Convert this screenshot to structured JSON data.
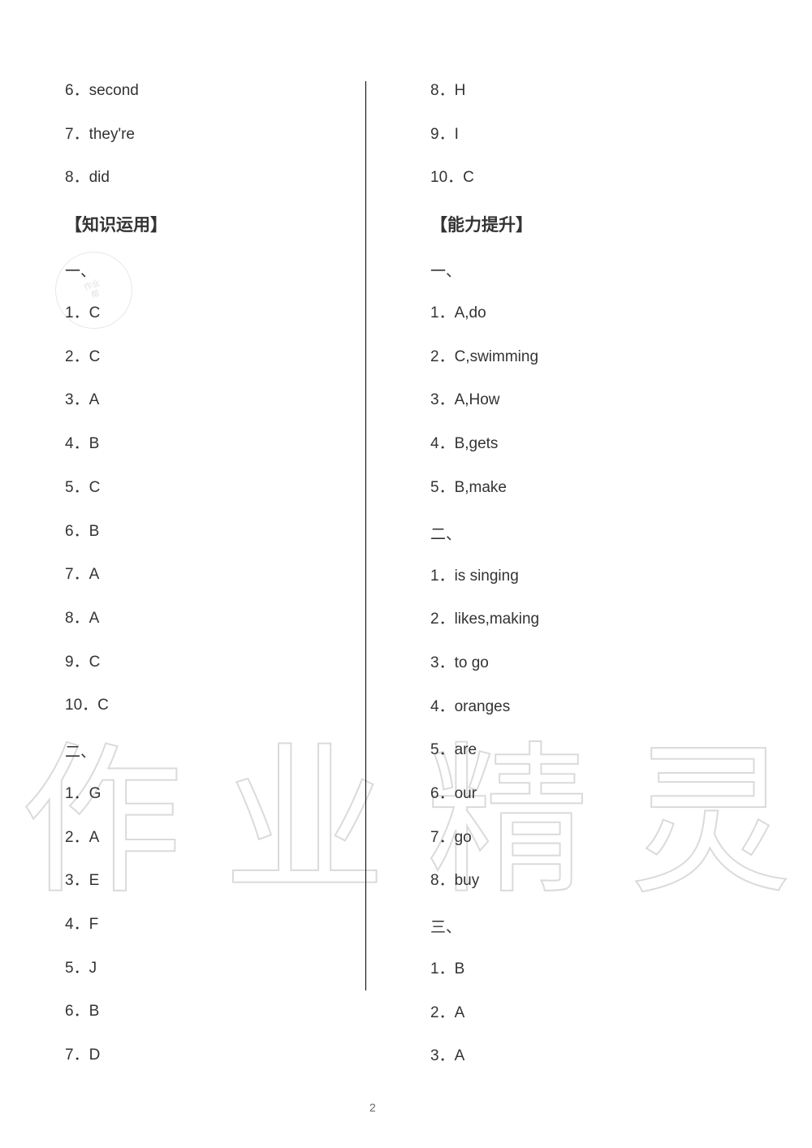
{
  "page_number": "2",
  "watermark": {
    "c1": "作",
    "c2": "业",
    "c3": "精",
    "c4": "灵"
  },
  "left": {
    "pre_items": [
      "6．second",
      "7．they're",
      "8．did"
    ],
    "heading": "【知识运用】",
    "section1_label": "一、",
    "section1": [
      "1．C",
      "2．C",
      "3．A",
      "4．B",
      "5．C",
      "6．B",
      "7．A",
      "8．A",
      "9．C",
      "10．C"
    ],
    "section2_label": "二、",
    "section2": [
      "1．G",
      "2．A",
      "3．E",
      "4．F",
      "5．J",
      "6．B",
      "7．D"
    ]
  },
  "right": {
    "pre_items": [
      "8．H",
      "9．I",
      "10．C"
    ],
    "heading": "【能力提升】",
    "section1_label": "一、",
    "section1": [
      "1．A,do",
      "2．C,swimming",
      "3．A,How",
      "4．B,gets",
      "5．B,make"
    ],
    "section2_label": "二、",
    "section2": [
      "1．is singing",
      "2．likes,making",
      "3．to go",
      "4．oranges",
      "5．are",
      "6．our",
      "7．go",
      "8．buy"
    ],
    "section3_label": "三、",
    "section3": [
      "1．B",
      "2．A",
      "3．A"
    ]
  }
}
